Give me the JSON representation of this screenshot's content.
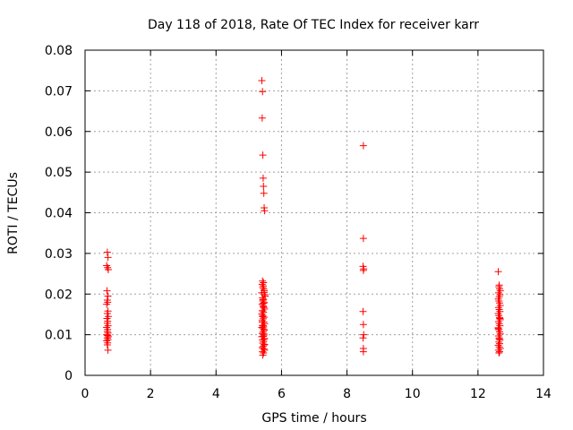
{
  "chart_data": {
    "type": "scatter",
    "title": "Day 118 of 2018, Rate Of TEC Index for receiver karr",
    "xlabel": "GPS time / hours",
    "ylabel": "ROTI / TECUs",
    "xlim": [
      0,
      14
    ],
    "ylim": [
      0,
      0.08
    ],
    "xticks": [
      0,
      2,
      4,
      6,
      8,
      10,
      12,
      14
    ],
    "xtick_labels": [
      "0",
      "2",
      "4",
      "6",
      "8",
      "10",
      "12",
      "14"
    ],
    "yticks": [
      0,
      0.01,
      0.02,
      0.03,
      0.04,
      0.05,
      0.06,
      0.07,
      0.08
    ],
    "ytick_labels": [
      "0",
      "0.01",
      "0.02",
      "0.03",
      "0.04",
      "0.05",
      "0.06",
      "0.07",
      "0.08"
    ],
    "grid": true,
    "marker": "+",
    "color": "#ff0000",
    "series": [
      {
        "name": "ROTI",
        "x": [
          0.68,
          0.7,
          0.66,
          0.69,
          0.71,
          0.67,
          0.7,
          0.68,
          0.69,
          0.66,
          0.7,
          0.68,
          0.71,
          0.67,
          0.69,
          0.68,
          0.7,
          0.66,
          0.69,
          0.68,
          0.7,
          0.67,
          0.69,
          0.71,
          0.68,
          0.7,
          0.66,
          0.69,
          0.68,
          0.7,
          5.4,
          5.42,
          5.41,
          5.43,
          5.44,
          5.45,
          5.46,
          5.47,
          5.48,
          5.42,
          5.45,
          5.41,
          5.44,
          5.43,
          5.46,
          5.47,
          5.4,
          5.48,
          5.5,
          5.42,
          5.45,
          5.43,
          5.47,
          5.41,
          5.44,
          5.46,
          5.48,
          5.42,
          5.45,
          5.4,
          5.43,
          5.47,
          5.44,
          5.41,
          5.46,
          5.48,
          5.42,
          5.45,
          5.43,
          5.47,
          5.44,
          5.41,
          5.46,
          5.4,
          5.48,
          5.42,
          5.45,
          5.43,
          5.47,
          5.44,
          5.41,
          5.46,
          5.48,
          5.42,
          5.45,
          5.43,
          5.47,
          5.4,
          5.44,
          5.46,
          5.42,
          5.45,
          5.43,
          5.47,
          5.41,
          5.44,
          5.46,
          5.48,
          5.42,
          5.45,
          8.5,
          8.5,
          8.49,
          8.51,
          8.5,
          8.49,
          8.5,
          8.51,
          8.49,
          8.5,
          8.5,
          12.62,
          12.65,
          12.64,
          12.66,
          12.68,
          12.63,
          12.67,
          12.65,
          12.62,
          12.64,
          12.66,
          12.68,
          12.63,
          12.65,
          12.67,
          12.62,
          12.64,
          12.66,
          12.68,
          12.63,
          12.65,
          12.67,
          12.62,
          12.64,
          12.66,
          12.68,
          12.63,
          12.65,
          12.67,
          12.64,
          12.66,
          12.62,
          12.65,
          12.68,
          12.63,
          12.66,
          12.64,
          12.67,
          12.62,
          12.65
        ],
        "y": [
          0.0303,
          0.029,
          0.027,
          0.0265,
          0.026,
          0.0208,
          0.0195,
          0.0185,
          0.018,
          0.0175,
          0.0158,
          0.0152,
          0.0145,
          0.014,
          0.0133,
          0.0128,
          0.0122,
          0.0118,
          0.0113,
          0.0108,
          0.0104,
          0.01,
          0.0098,
          0.0095,
          0.0092,
          0.0088,
          0.0085,
          0.008,
          0.0075,
          0.0062,
          0.0725,
          0.0698,
          0.0633,
          0.0542,
          0.0485,
          0.0465,
          0.0448,
          0.0412,
          0.0405,
          0.0232,
          0.0228,
          0.0224,
          0.022,
          0.0216,
          0.0212,
          0.0208,
          0.0203,
          0.0199,
          0.0195,
          0.0191,
          0.0187,
          0.0183,
          0.0179,
          0.0175,
          0.0171,
          0.0167,
          0.0163,
          0.0159,
          0.0155,
          0.0151,
          0.0147,
          0.0143,
          0.0139,
          0.0135,
          0.0131,
          0.0127,
          0.0123,
          0.0119,
          0.0115,
          0.0111,
          0.0107,
          0.0103,
          0.0099,
          0.0095,
          0.0091,
          0.0087,
          0.0083,
          0.0079,
          0.0075,
          0.0071,
          0.0068,
          0.0065,
          0.0062,
          0.0058,
          0.0055,
          0.005,
          0.0112,
          0.0118,
          0.0096,
          0.0102,
          0.0145,
          0.0168,
          0.0186,
          0.0204,
          0.0131,
          0.0122,
          0.0088,
          0.0076,
          0.0159,
          0.0177,
          0.0565,
          0.0337,
          0.0268,
          0.0262,
          0.0258,
          0.0157,
          0.0125,
          0.01,
          0.0092,
          0.0066,
          0.0058,
          0.0255,
          0.0222,
          0.0218,
          0.0213,
          0.0208,
          0.0203,
          0.0198,
          0.0193,
          0.0188,
          0.0183,
          0.0178,
          0.0172,
          0.0167,
          0.0162,
          0.0157,
          0.0152,
          0.0147,
          0.0142,
          0.0137,
          0.0132,
          0.0127,
          0.0122,
          0.0117,
          0.0112,
          0.0107,
          0.0102,
          0.0097,
          0.0092,
          0.0087,
          0.0082,
          0.0078,
          0.0074,
          0.007,
          0.0066,
          0.0062,
          0.0058,
          0.0055,
          0.014,
          0.0115,
          0.009
        ]
      }
    ]
  }
}
